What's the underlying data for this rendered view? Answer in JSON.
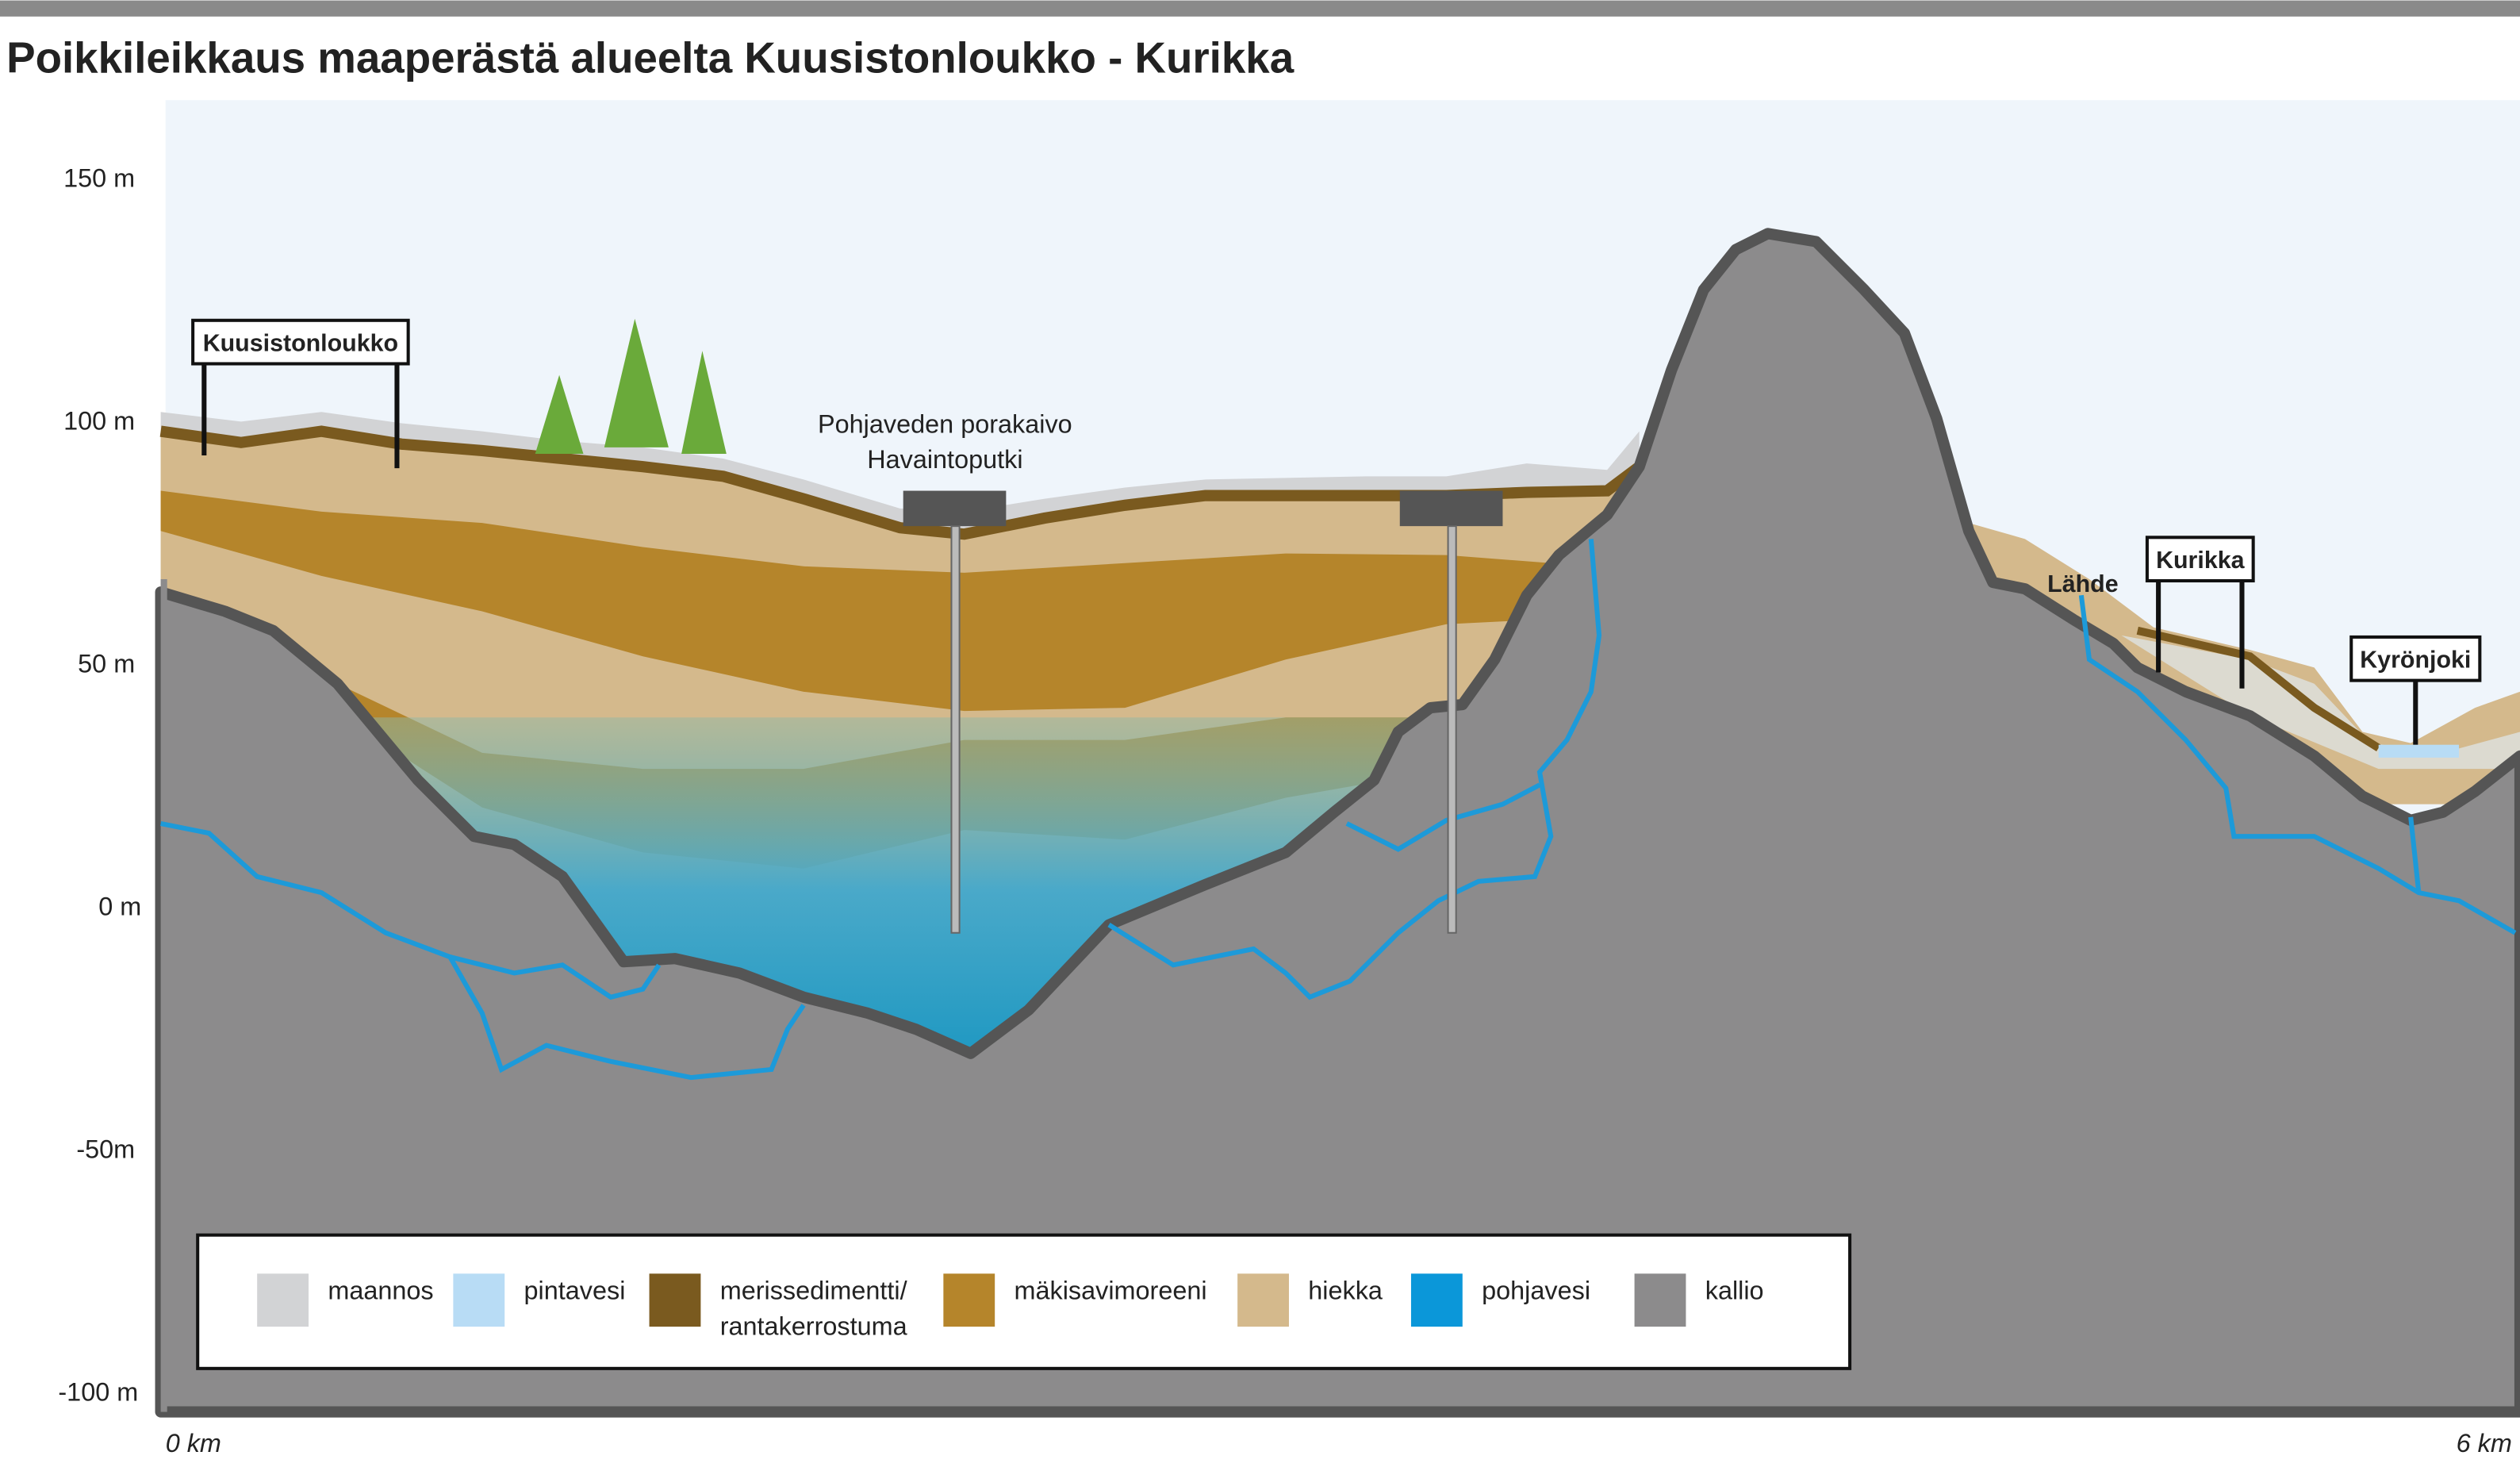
{
  "header": {
    "title": "Poikkileikkaus maaperästä alueelta Kuusistonloukko - Kurikka"
  },
  "y_axis": {
    "labels": [
      "150 m",
      "100 m",
      "50 m",
      "0 m",
      "-50m",
      "-100 m"
    ]
  },
  "x_axis": {
    "labels": [
      "0 km",
      "6 km"
    ]
  },
  "places": {
    "kuusistonloukko": "Kuusistonloukko",
    "kurikka": "Kurikka",
    "kyronjoki": "Kyrönjoki",
    "lahde": "Lähde"
  },
  "well": {
    "lines": [
      "Pohjaveden porakaivo",
      "Havaintoputki"
    ]
  },
  "legend": {
    "items": [
      {
        "label": "maannos"
      },
      {
        "label": "pintavesi"
      },
      {
        "label": [
          "merissedimentti/",
          "rantakerrostuma"
        ]
      },
      {
        "label": "mäkisavimoreeni"
      },
      {
        "label": "hiekka"
      },
      {
        "label": "pohjavesi"
      },
      {
        "label": "kallio"
      }
    ]
  }
}
